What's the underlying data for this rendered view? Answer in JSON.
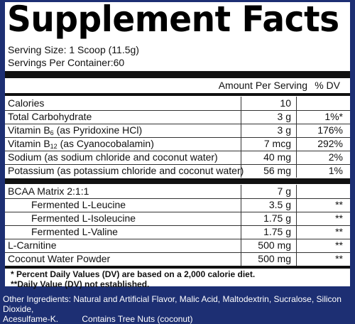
{
  "title": "Supplement Facts",
  "serving_size": "Serving Size: 1 Scoop (11.5g)",
  "servings_per_container": "Servings Per Container:60",
  "columns": {
    "amount": "Amount Per Serving",
    "dv": "% DV"
  },
  "rows_group1": [
    {
      "name": "Calories",
      "amount": "10",
      "dv": ""
    },
    {
      "name": "Total Carbohydrate",
      "amount": "3 g",
      "dv": "1%*"
    },
    {
      "name_pre": "Vitamin B",
      "name_sub": "6",
      "name_post": " (as Pyridoxine HCl)",
      "amount": "3 g",
      "dv": "176%"
    },
    {
      "name_pre": "Vitamin B",
      "name_sub": "12",
      "name_post": " (as Cyanocobalamin)",
      "amount": "7 mcg",
      "dv": "292%"
    },
    {
      "name": "Sodium (as sodium chloride and coconut water)",
      "amount": "40 mg",
      "dv": "2%"
    },
    {
      "name": "Potassium (as potassium chloride and coconut water)",
      "amount": "56 mg",
      "dv": "1%"
    }
  ],
  "rows_group2": [
    {
      "name": "BCAA Matrix 2:1:1",
      "amount": "7 g",
      "dv": ""
    },
    {
      "name": "Fermented L-Leucine",
      "amount": "3.5 g",
      "dv": "**"
    },
    {
      "name": "Fermented L-Isoleucine",
      "amount": "1.75 g",
      "dv": "**"
    },
    {
      "name": "Fermented L-Valine",
      "amount": "1.75 g",
      "dv": "**"
    },
    {
      "name": "L-Carnitine",
      "amount": "500 mg",
      "dv": "**"
    },
    {
      "name": "Coconut Water Powder",
      "amount": "500 mg",
      "dv": "**"
    }
  ],
  "footnote1": "* Percent Daily Values (DV) are based on a 2,000 calorie diet.",
  "footnote2": "**Daily Value (DV) not established.",
  "other_ingredients_line1": "Other Ingredients: Natural and Artificial Flavor, Malic Acid, Maltodextrin, Sucralose, Silicon Dioxide,",
  "other_ingredients_line2": "Acesulfame-K.          Contains Tree Nuts (coconut)",
  "colors": {
    "background": "#1d2f73",
    "panel": "#ffffff",
    "text": "#111111"
  }
}
